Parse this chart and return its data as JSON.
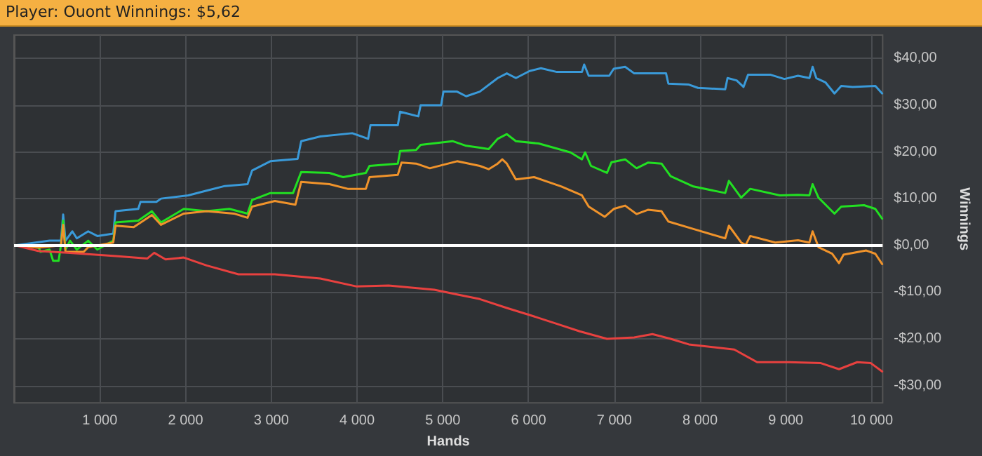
{
  "chart_data": {
    "type": "line",
    "title": "Player: Ouont Winnings: $5,62",
    "xlabel": "Hands",
    "ylabel": "Winnings",
    "xlim": [
      0,
      10130
    ],
    "ylim": [
      -33.7,
      45
    ],
    "xticks": [
      {
        "value": 1000,
        "label": "1 000"
      },
      {
        "value": 2000,
        "label": "2 000"
      },
      {
        "value": 3000,
        "label": "3 000"
      },
      {
        "value": 4000,
        "label": "4 000"
      },
      {
        "value": 5000,
        "label": "5 000"
      },
      {
        "value": 6000,
        "label": "6 000"
      },
      {
        "value": 7000,
        "label": "7 000"
      },
      {
        "value": 8000,
        "label": "8 000"
      },
      {
        "value": 9000,
        "label": "9 000"
      },
      {
        "value": 10000,
        "label": "10 000"
      }
    ],
    "yticks": [
      {
        "value": -30,
        "label": "-$30,00"
      },
      {
        "value": -20,
        "label": "-$20,00"
      },
      {
        "value": -10,
        "label": "-$10,00"
      },
      {
        "value": 0,
        "label": "$0,00"
      },
      {
        "value": 10,
        "label": "$10,00"
      },
      {
        "value": 20,
        "label": "$20,00"
      },
      {
        "value": 30,
        "label": "$30,00"
      },
      {
        "value": 40,
        "label": "$40,00"
      }
    ],
    "grid": true,
    "marker": "none",
    "line_style": "solid",
    "ref_lines": [
      {
        "axis": "y",
        "value": 0,
        "color": "#ffffff"
      }
    ],
    "series": [
      {
        "color": "#3a9ad9",
        "x": [
          16,
          414,
          547,
          573,
          600,
          680,
          732,
          865,
          971,
          1157,
          1184,
          1449,
          1475,
          1661,
          1714,
          2032,
          2245,
          2458,
          2723,
          2776,
          2989,
          3307,
          3349,
          3572,
          3944,
          4130,
          4157,
          4476,
          4503,
          4715,
          4742,
          4981,
          5008,
          5167,
          5273,
          5432,
          5641,
          5747,
          5853,
          6012,
          6145,
          6331,
          6623,
          6649,
          6702,
          6941,
          6994,
          7127,
          7233,
          7604,
          7631,
          7870,
          7976,
          8294,
          8321,
          8427,
          8507,
          8560,
          8825,
          8984,
          9143,
          9276,
          9313,
          9356,
          9462,
          9568,
          9647,
          9780,
          10045,
          10124
        ],
        "values": [
          0,
          1.0,
          1.0,
          6.6,
          1.0,
          3.0,
          1.5,
          3.0,
          2.0,
          2.5,
          7.3,
          7.8,
          9.3,
          9.3,
          10.0,
          10.7,
          11.7,
          12.7,
          13.1,
          16.0,
          18.0,
          18.5,
          22.3,
          23.3,
          24.0,
          22.8,
          25.7,
          25.7,
          28.6,
          27.6,
          30.0,
          30.0,
          32.9,
          32.9,
          31.9,
          32.9,
          35.8,
          36.8,
          35.8,
          37.3,
          37.9,
          37.1,
          37.1,
          38.7,
          36.3,
          36.3,
          37.8,
          38.2,
          36.8,
          36.8,
          34.6,
          34.4,
          33.7,
          33.4,
          35.8,
          35.3,
          33.9,
          36.5,
          36.5,
          35.6,
          36.3,
          35.8,
          38.2,
          35.8,
          34.9,
          32.5,
          34.1,
          33.9,
          34.1,
          32.5
        ]
      },
      {
        "color": "#22e022",
        "x": [
          16,
          281,
          308,
          414,
          456,
          520,
          547,
          573,
          600,
          653,
          732,
          865,
          971,
          1157,
          1184,
          1449,
          1608,
          1714,
          1980,
          2245,
          2511,
          2723,
          2776,
          2989,
          3254,
          3349,
          3678,
          3838,
          4103,
          4146,
          4476,
          4503,
          4689,
          4742,
          5114,
          5273,
          5432,
          5535,
          5641,
          5747,
          5853,
          6118,
          6490,
          6623,
          6660,
          6729,
          6915,
          6968,
          7127,
          7260,
          7392,
          7551,
          7657,
          7923,
          8294,
          8337,
          8480,
          8586,
          8931,
          9143,
          9276,
          9313,
          9382,
          9568,
          9647,
          9913,
          10045,
          10124
        ],
        "values": [
          0,
          0,
          -1.4,
          -0.9,
          -3.3,
          -3.3,
          0,
          5.3,
          -0.9,
          1.0,
          -0.9,
          1.0,
          -0.9,
          1.0,
          4.9,
          5.3,
          7.3,
          4.9,
          7.8,
          7.3,
          7.8,
          6.8,
          9.7,
          11.2,
          11.2,
          15.7,
          15.5,
          14.6,
          15.5,
          17.0,
          17.5,
          20.2,
          20.4,
          21.5,
          22.3,
          21.3,
          20.9,
          20.6,
          22.8,
          23.8,
          22.3,
          21.8,
          19.9,
          18.4,
          19.9,
          17.0,
          15.5,
          17.8,
          18.4,
          16.5,
          17.7,
          17.5,
          14.8,
          12.6,
          11.2,
          13.8,
          10.2,
          12.1,
          10.7,
          10.8,
          10.7,
          13.1,
          10.2,
          6.8,
          8.3,
          8.6,
          7.8,
          5.7
        ]
      },
      {
        "color": "#f0932b",
        "x": [
          16,
          281,
          547,
          573,
          600,
          812,
          865,
          1157,
          1184,
          1396,
          1608,
          1714,
          1980,
          2245,
          2564,
          2723,
          2776,
          3042,
          3281,
          3349,
          3678,
          3891,
          4103,
          4146,
          4476,
          4519,
          4689,
          4848,
          5167,
          5432,
          5535,
          5641,
          5694,
          5747,
          5853,
          6065,
          6384,
          6623,
          6702,
          6888,
          6994,
          7127,
          7260,
          7392,
          7551,
          7631,
          7923,
          8294,
          8337,
          8480,
          8533,
          8586,
          8878,
          9143,
          9276,
          9313,
          9382,
          9541,
          9621,
          9674,
          9939,
          10045,
          10124
        ],
        "values": [
          0,
          -0.5,
          0,
          4.4,
          -1.4,
          -1.4,
          -0.4,
          0.6,
          4.2,
          3.9,
          6.5,
          4.4,
          6.8,
          7.3,
          6.8,
          5.9,
          8.3,
          9.5,
          8.7,
          13.6,
          13.1,
          12.1,
          12.1,
          14.6,
          15.1,
          17.7,
          17.5,
          16.5,
          18.0,
          17.0,
          16.3,
          17.5,
          18.4,
          17.5,
          14.1,
          14.6,
          12.6,
          10.7,
          8.3,
          6.1,
          7.8,
          8.5,
          6.7,
          7.6,
          7.3,
          5.1,
          3.5,
          1.5,
          4.2,
          0.6,
          0.1,
          2.0,
          0.6,
          1.1,
          0.6,
          3.0,
          -0.4,
          -1.8,
          -3.8,
          -2.0,
          -1.1,
          -1.8,
          -4.0
        ]
      },
      {
        "color": "#e8413f",
        "x": [
          16,
          281,
          653,
          1184,
          1555,
          1635,
          1767,
          1980,
          2245,
          2617,
          3042,
          3572,
          3997,
          4369,
          4901,
          5167,
          5432,
          5747,
          6012,
          6331,
          6596,
          6915,
          7233,
          7445,
          7657,
          7870,
          8400,
          8666,
          9037,
          9409,
          9621,
          9833,
          9992,
          10124
        ],
        "values": [
          0,
          -1.2,
          -1.6,
          -2.3,
          -2.8,
          -1.6,
          -3.0,
          -2.6,
          -4.3,
          -6.2,
          -6.2,
          -7.1,
          -8.8,
          -8.6,
          -9.5,
          -10.5,
          -11.5,
          -13.4,
          -14.9,
          -16.8,
          -18.4,
          -20.0,
          -19.7,
          -19.0,
          -20.0,
          -21.2,
          -22.3,
          -25.0,
          -25.0,
          -25.2,
          -26.5,
          -25.0,
          -25.2,
          -27.0
        ]
      }
    ]
  }
}
